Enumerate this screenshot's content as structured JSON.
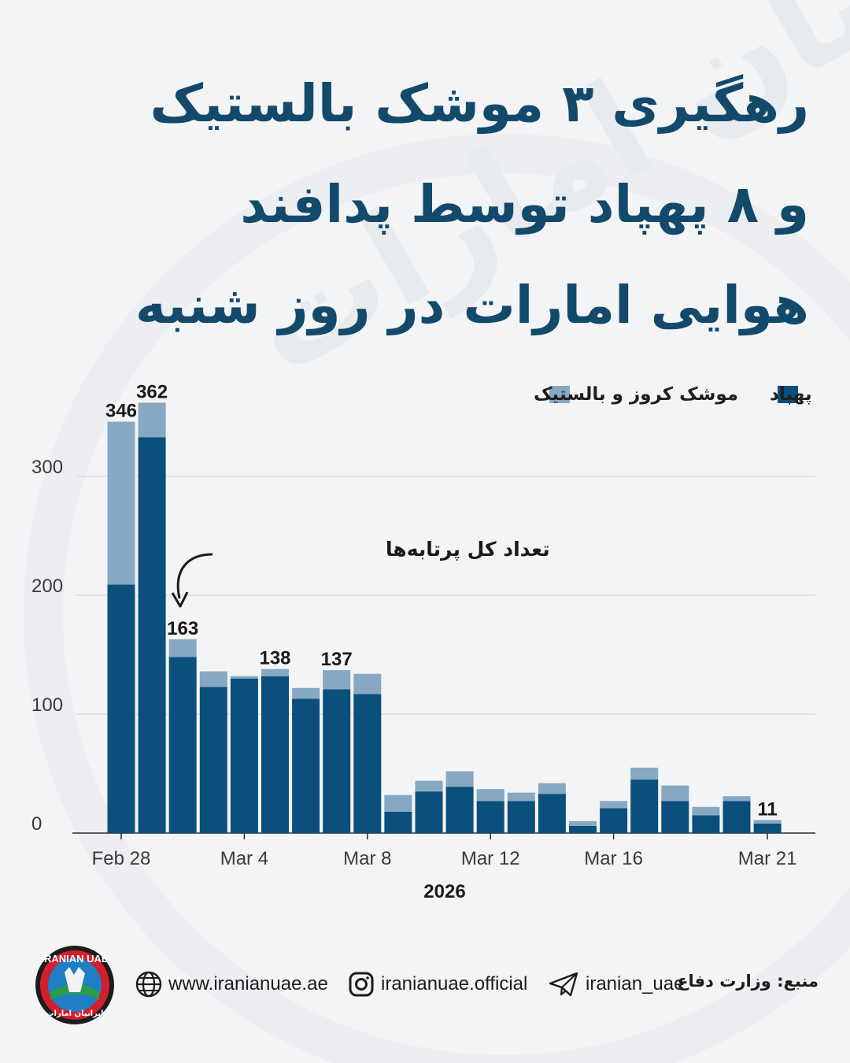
{
  "title": {
    "line1": "رهگیری ۳ موشک بالستیک",
    "line2": "و ۸ پهپاد توسط پدافند",
    "line3": "هوایی امارات در روز شنبه"
  },
  "legend": {
    "drones": "پهپاد",
    "missiles": "موشک کروز و بالستیک"
  },
  "annotation": "تعداد کل پرتابه‌ها",
  "watermark_text": "ایرانیان امارات",
  "chart_data": {
    "type": "bar",
    "stacked": true,
    "x": [
      "Feb 28",
      "Mar 1",
      "Mar 2",
      "Mar 3",
      "Mar 4",
      "Mar 5",
      "Mar 6",
      "Mar 7",
      "Mar 8",
      "Mar 9",
      "Mar 10",
      "Mar 11",
      "Mar 12",
      "Mar 13",
      "Mar 14",
      "Mar 15",
      "Mar 16",
      "Mar 17",
      "Mar 18",
      "Mar 19",
      "Mar 20",
      "Mar 21"
    ],
    "series": [
      {
        "name": "پهپاد",
        "color": "#0b4f7c",
        "values": [
          209,
          333,
          148,
          123,
          130,
          132,
          113,
          121,
          117,
          18,
          35,
          39,
          27,
          27,
          33,
          6,
          21,
          45,
          27,
          15,
          27,
          8
        ]
      },
      {
        "name": "موشک کروز و بالستیک",
        "color": "#86a8c3",
        "values": [
          137,
          29,
          15,
          13,
          2,
          6,
          9,
          16,
          17,
          14,
          9,
          13,
          10,
          7,
          9,
          4,
          6,
          10,
          13,
          7,
          4,
          3
        ]
      }
    ],
    "totals_labeled": [
      {
        "x": "Feb 28",
        "value": 346
      },
      {
        "x": "Mar 1",
        "value": 362
      },
      {
        "x": "Mar 2",
        "value": 163
      },
      {
        "x": "Mar 5",
        "value": 138
      },
      {
        "x": "Mar 7",
        "value": 137
      },
      {
        "x": "Mar 21",
        "value": 11
      }
    ],
    "x_ticks": [
      "Feb 28",
      "Mar 4",
      "Mar 8",
      "Mar 12",
      "Mar 16",
      "Mar 21"
    ],
    "xlabel": "2026",
    "y_ticks": [
      0,
      100,
      200,
      300
    ],
    "ylim": [
      0,
      370
    ],
    "grid": true,
    "legend_position": "top"
  },
  "footer": {
    "website": "www.iranianuae.ae",
    "instagram": "iranianuae.official",
    "telegram": "iranian_uae",
    "source": "منبع: وزارت دفاع",
    "logo_text_top": "IRANIAN UAE",
    "logo_text_bottom": "ایرانیان امارات"
  }
}
